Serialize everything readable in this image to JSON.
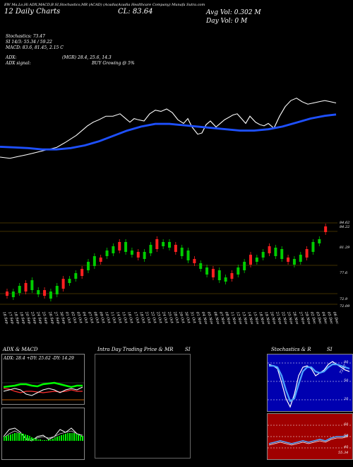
{
  "header": {
    "top_line": "EW Ma,Lo,Hi ADX,MACD,B   SI,Stochastics,MR   (ACAD)   (Acadia(Acadia Healthcare Company) Munafa Sutra.com",
    "charts_label": "Charts for",
    "date_label": "12 Daily Charts",
    "close_label": "CL: 83.64",
    "avg_vol": "Avg Vol: 0.302  M",
    "day_vol": "Day Vol: 0  M"
  },
  "indicators": {
    "stochastics": "Stochastics: 73.47",
    "si": "SI 14/3: 55.34  / 59.22",
    "macd": "MACD: 83.6, 81.45, 2.15  C",
    "adx": "ADX:",
    "mgr": "(MGR) 28.4, 25.6, 14.3",
    "adx_signal": "ADX  signal:",
    "buy": "BUY Growing @ 5%"
  },
  "price_levels": [
    "84.62",
    "84.22",
    "81.29",
    "77.6",
    "72.9",
    "72.09"
  ],
  "date_labels": [
    "16 Sep",
    "17 Sep",
    "18 Sep",
    "19 Sep",
    "20 Sep",
    "23 Sep",
    "24 Sep",
    "25 Sep",
    "26 Sep",
    "27 Sep",
    "30 Sep",
    "01 Oct",
    "02 Oct",
    "03 Oct",
    "04 Oct",
    "07 Oct",
    "08 Oct",
    "09 Oct",
    "10 Oct",
    "11 Oct",
    "14 Oct",
    "15 Oct",
    "16 Oct",
    "17 Oct",
    "18 Oct",
    "21 Oct",
    "22 Oct",
    "23 Oct",
    "24 Oct",
    "25 Oct",
    "28 Oct",
    "29 Oct",
    "30 Oct",
    "31 Oct",
    "01 Nov",
    "04 Nov",
    "05 Nov",
    "06 Nov",
    "07 Nov",
    "08 Nov",
    "11 Nov",
    "12 Nov",
    "13 Nov",
    "14 Nov",
    "15 Nov",
    "18 Nov",
    "19 Nov",
    "20 Nov",
    "21 Nov",
    "22 Nov",
    "25 Nov",
    "26 Nov",
    "27 Nov",
    "29 Nov",
    "02 Dec",
    "03 Dec",
    "04 Dec",
    "05 Dec",
    "06 Dec"
  ],
  "panels": {
    "adx_title": "ADX  & MACD",
    "adx_values": "ADX: 28.4  +DY: 25.62  -DY: 14.29",
    "intraday_title": "Intra Day Trading Price  & MR",
    "intraday_si": "SI",
    "stoch_title": "Stochastics & R",
    "stoch_si": "SI",
    "stoch_levels": [
      "80",
      "50",
      "20"
    ],
    "si_levels": [
      "60",
      "50",
      "40"
    ],
    "stoch_value": "73.47",
    "si_value": "55.34"
  },
  "chart_data": {
    "type": "line",
    "series": [
      {
        "values": [
          66,
          66,
          68,
          68,
          72,
          75,
          80,
          85,
          95,
          102,
          108,
          110,
          112,
          116,
          118,
          120,
          115,
          110,
          108,
          110,
          115,
          125,
          130,
          135,
          140,
          142,
          145,
          150,
          148,
          142,
          135,
          130,
          125,
          122,
          128,
          135,
          140,
          145,
          150,
          155,
          160,
          162,
          158,
          150,
          145,
          140,
          135,
          132,
          135,
          140,
          146,
          148,
          150,
          148,
          145,
          142,
          140,
          138,
          136,
          130,
          128,
          126,
          130,
          135,
          140,
          142,
          140,
          138
        ]
      },
      {
        "values": [
          45,
          45,
          44,
          44,
          43,
          42,
          42,
          43,
          45,
          48,
          52,
          56,
          60,
          64,
          68,
          72,
          76,
          80,
          84,
          86,
          88,
          90,
          92,
          94,
          96,
          97,
          98,
          99,
          99,
          98,
          97,
          96,
          95,
          94,
          93,
          92,
          92,
          93,
          95,
          98,
          100,
          102,
          104,
          106,
          110,
          115,
          120,
          124,
          128,
          130,
          132,
          134,
          135
        ]
      }
    ]
  }
}
